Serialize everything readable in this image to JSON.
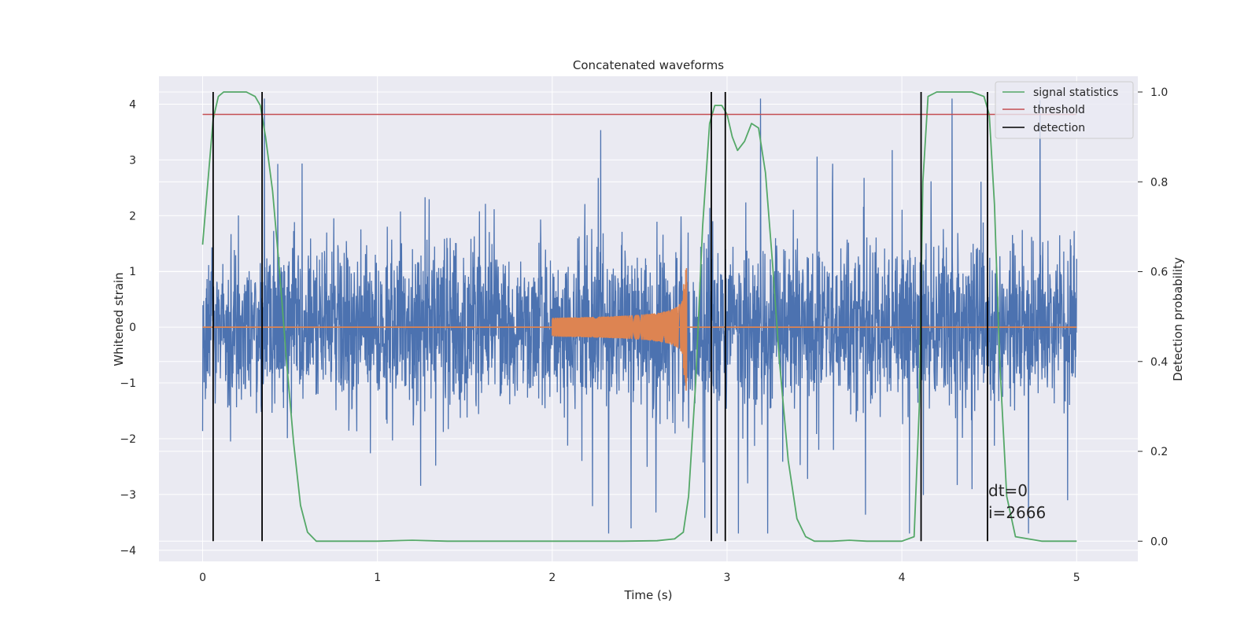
{
  "chart_data": {
    "type": "line",
    "title": "Concatenated waveforms",
    "xlabel": "Time (s)",
    "ylabel": "Whitened strain",
    "ylabel_right": "Detection probability",
    "xlim": [
      -0.25,
      5.35
    ],
    "ylim": [
      -4.2,
      4.5
    ],
    "ylim_right": [
      -0.045,
      1.035
    ],
    "x_ticks": [
      0,
      1,
      2,
      3,
      4,
      5
    ],
    "y_ticks": [
      -4,
      -3,
      -2,
      -1,
      0,
      1,
      2,
      3,
      4
    ],
    "y_ticks_right": [
      0.0,
      0.2,
      0.4,
      0.6,
      0.8,
      1.0
    ],
    "x_tick_labels": [
      "0",
      "1",
      "2",
      "3",
      "4",
      "5"
    ],
    "y_tick_labels": [
      "−4",
      "−3",
      "−2",
      "−1",
      "0",
      "1",
      "2",
      "3",
      "4"
    ],
    "y_tick_labels_right": [
      "0.0",
      "0.2",
      "0.4",
      "0.6",
      "0.8",
      "1.0"
    ],
    "grid": true,
    "legend_position": "top-right",
    "legend": [
      "signal statistics",
      "threshold",
      "detection"
    ],
    "colors": {
      "strain": "#4c72b0",
      "template": "#dd8452",
      "signal_statistics": "#55a868",
      "threshold": "#c44e52",
      "detection": "#000000",
      "plot_bg": "#eaeaf2",
      "grid": "#ffffff"
    },
    "series": [
      {
        "axis": "left",
        "x_range": [
          0,
          5
        ],
        "noise_amplitude_range": [
          -3.7,
          4.1
        ]
      },
      {
        "axis": "left",
        "x_range": [
          2.0,
          2.77
        ],
        "amplitude_range": [
          -1.5,
          1.3
        ]
      },
      {
        "name": "signal statistics",
        "axis": "right",
        "x": [
          0.0,
          0.03,
          0.06,
          0.09,
          0.12,
          0.15,
          0.2,
          0.25,
          0.3,
          0.33,
          0.36,
          0.4,
          0.44,
          0.48,
          0.52,
          0.56,
          0.6,
          0.65,
          0.8,
          1.0,
          1.2,
          1.4,
          1.6,
          1.8,
          2.0,
          2.2,
          2.4,
          2.6,
          2.7,
          2.75,
          2.78,
          2.82,
          2.86,
          2.9,
          2.93,
          2.97,
          3.0,
          3.03,
          3.06,
          3.1,
          3.14,
          3.18,
          3.22,
          3.26,
          3.3,
          3.35,
          3.4,
          3.45,
          3.5,
          3.6,
          3.7,
          3.8,
          3.9,
          4.0,
          4.07,
          4.1,
          4.12,
          4.15,
          4.2,
          4.3,
          4.4,
          4.47,
          4.5,
          4.53,
          4.56,
          4.6,
          4.65,
          4.8,
          5.0
        ],
        "y": [
          0.66,
          0.8,
          0.94,
          0.99,
          1.0,
          1.0,
          1.0,
          1.0,
          0.99,
          0.97,
          0.9,
          0.78,
          0.6,
          0.4,
          0.22,
          0.08,
          0.02,
          0.0,
          0.0,
          0.0,
          0.002,
          0.0,
          0.0,
          0.0,
          0.0,
          0.0,
          0.0,
          0.001,
          0.005,
          0.02,
          0.1,
          0.35,
          0.7,
          0.93,
          0.97,
          0.97,
          0.95,
          0.9,
          0.87,
          0.89,
          0.93,
          0.92,
          0.82,
          0.62,
          0.4,
          0.18,
          0.05,
          0.01,
          0.0,
          0.0,
          0.002,
          0.0,
          0.0,
          0.0,
          0.01,
          0.3,
          0.8,
          0.99,
          1.0,
          1.0,
          1.0,
          0.99,
          0.95,
          0.75,
          0.4,
          0.1,
          0.01,
          0.0,
          0.0
        ]
      },
      {
        "name": "threshold",
        "axis": "right",
        "x": [
          0,
          5
        ],
        "y": [
          0.95,
          0.95
        ]
      },
      {
        "name": "detection",
        "axis": "right",
        "x": [
          0.06,
          0.34,
          2.91,
          2.99,
          4.11,
          4.49
        ],
        "y_range": [
          0.0,
          1.0
        ]
      }
    ],
    "annotation": {
      "x": 4.5,
      "lines": [
        "dt=0",
        "i=2666"
      ]
    }
  }
}
